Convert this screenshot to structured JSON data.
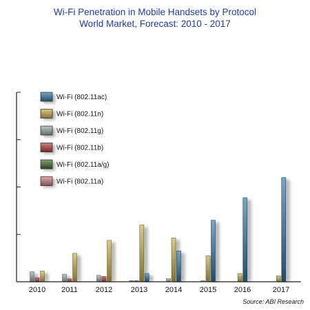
{
  "chart_data": {
    "type": "bar",
    "title": "Wi-Fi Penetration in Mobile Handsets by Protocol",
    "subtitle": "World Market, Forecast: 2010 - 2017",
    "source": "Source: ABI Research",
    "categories": [
      "2010",
      "2011",
      "2012",
      "2013",
      "2014",
      "2015",
      "2016",
      "2017"
    ],
    "ylim": [
      0,
      8
    ],
    "grid": false,
    "legend_position": "top-left",
    "series": [
      {
        "name": "Wi-Fi (802.11ac)",
        "color": "#2f78a8",
        "values": [
          0,
          0,
          0,
          0.35,
          1.3,
          2.6,
          3.55,
          4.4
        ]
      },
      {
        "name": "Wi-Fi (802.11n)",
        "color": "#c9ad4a",
        "values": [
          0.45,
          1.2,
          1.75,
          2.4,
          1.85,
          1.1,
          0.35,
          0.25
        ]
      },
      {
        "name": "Wi-Fi (802.11g)",
        "color": "#97aaa6",
        "values": [
          0.42,
          0.32,
          0.27,
          0.05,
          0.13,
          0.02,
          0,
          0
        ]
      },
      {
        "name": "Wi-Fi (802.11b)",
        "color": "#b43c3c",
        "values": [
          0.17,
          0.12,
          0.22,
          0.03,
          0,
          0,
          0,
          0
        ]
      },
      {
        "name": "Wi-Fi (802.11a/g)",
        "color": "#3e6e2a",
        "values": [
          0,
          0,
          0,
          0,
          0,
          0,
          0,
          0
        ]
      },
      {
        "name": "Wi-Fi (802.11a)",
        "color": "#d07a7a",
        "values": [
          0,
          0,
          0,
          0,
          0,
          0,
          0,
          0
        ]
      }
    ]
  }
}
